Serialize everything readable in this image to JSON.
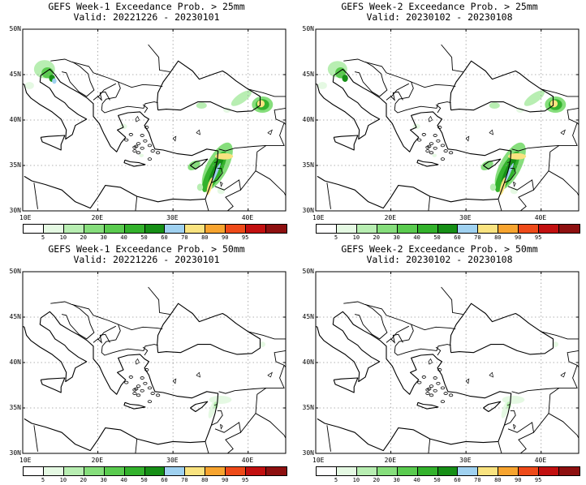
{
  "panels": [
    {
      "title": "GEFS Week-1 Exceedance Prob. > 25mm",
      "valid": "Valid: 20221226 - 20230101"
    },
    {
      "title": "GEFS Week-2 Exceedance Prob. > 25mm",
      "valid": "Valid: 20230102 - 20230108"
    },
    {
      "title": "GEFS Week-1 Exceedance Prob. > 50mm",
      "valid": "Valid: 20221226 - 20230101"
    },
    {
      "title": "GEFS Week-2 Exceedance Prob. > 50mm",
      "valid": "Valid: 20230102 - 20230108"
    }
  ],
  "lat_labels": [
    "50N",
    "45N",
    "40N",
    "35N",
    "30N"
  ],
  "lon_labels": [
    "10E",
    "20E",
    "30E",
    "40E"
  ],
  "colorbar": {
    "ticks": [
      "5",
      "10",
      "20",
      "30",
      "40",
      "50",
      "60",
      "70",
      "80",
      "90",
      "95"
    ],
    "colors": [
      "#ffffff",
      "#e5f9e3",
      "#b8eeb2",
      "#86de7c",
      "#5acb4f",
      "#33b22c",
      "#168f16",
      "#9fd1f0",
      "#f9e380",
      "#f7a42f",
      "#ee4a19",
      "#c21010",
      "#8e1010"
    ]
  }
}
